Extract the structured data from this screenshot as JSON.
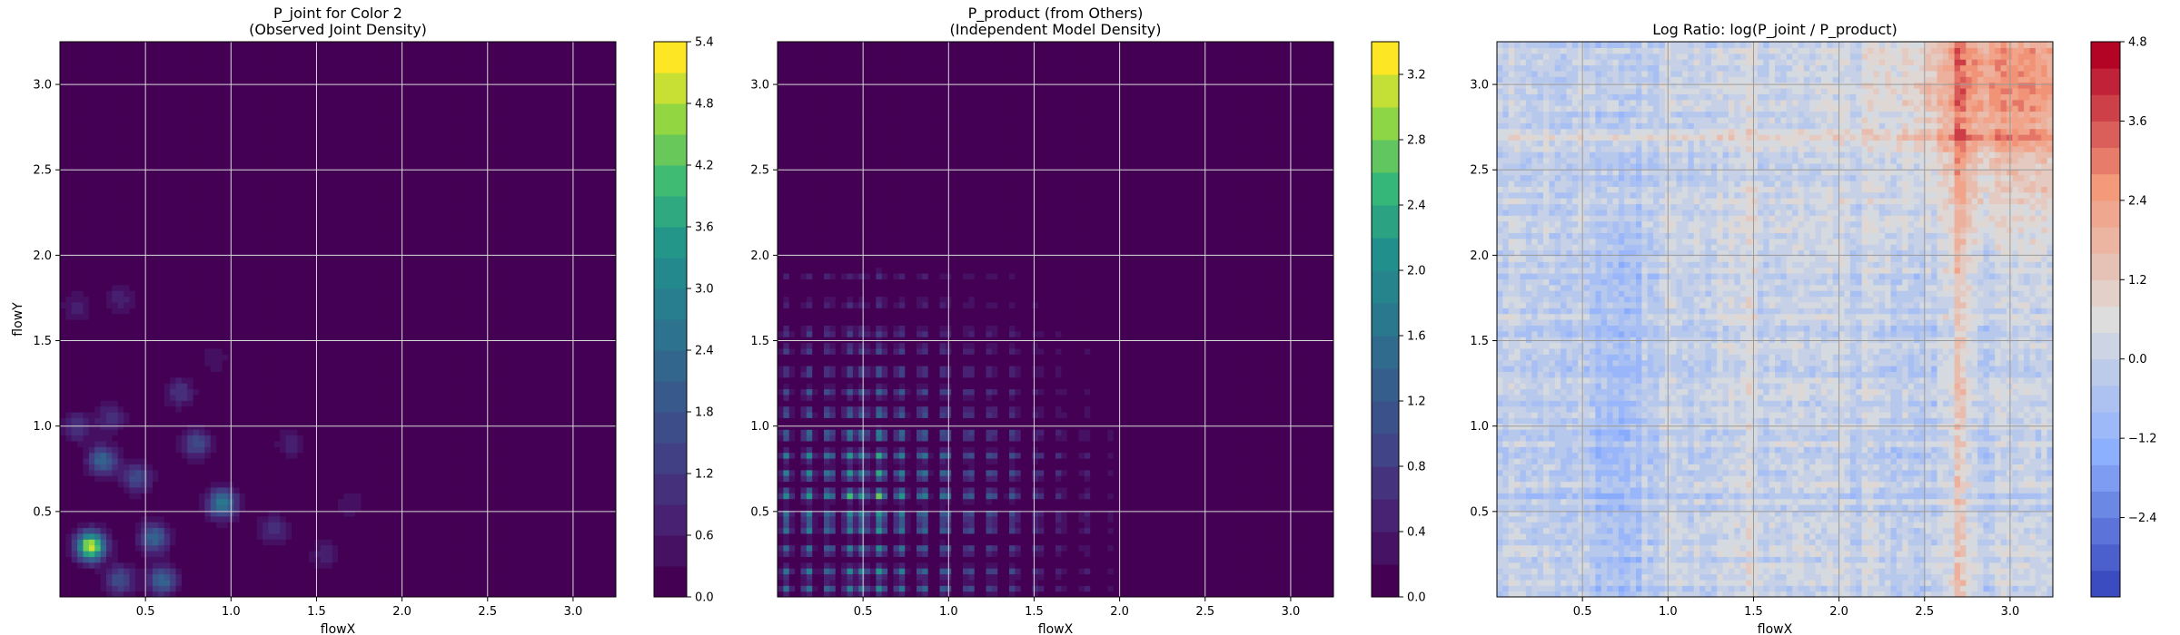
{
  "chart_data": [
    {
      "type": "heatmap",
      "title": "P_joint for Color 2\n(Observed Joint Density)",
      "xlabel": "flowX",
      "ylabel": "flowY",
      "xlim": [
        0.0,
        3.25
      ],
      "ylim": [
        0.0,
        3.25
      ],
      "x_ticks": [
        "0.5",
        "1.0",
        "1.5",
        "2.0",
        "2.5",
        "3.0"
      ],
      "y_ticks": [
        "0.5",
        "1.0",
        "1.5",
        "2.0",
        "2.5",
        "3.0"
      ],
      "grid": true,
      "colormap": "viridis",
      "colorbar": {
        "min": 0.0,
        "max": 5.4,
        "ticks": [
          "0.0",
          "0.6",
          "1.2",
          "1.8",
          "2.4",
          "3.0",
          "3.6",
          "4.2",
          "4.8",
          "5.4"
        ],
        "levels": 18
      },
      "density_peaks": [
        {
          "x": 0.18,
          "y": 0.3,
          "value": 5.4
        },
        {
          "x": 0.95,
          "y": 0.55,
          "value": 3.0
        },
        {
          "x": 0.25,
          "y": 0.8,
          "value": 2.4
        },
        {
          "x": 0.55,
          "y": 0.35,
          "value": 2.4
        },
        {
          "x": 0.6,
          "y": 0.1,
          "value": 2.4
        },
        {
          "x": 0.8,
          "y": 0.9,
          "value": 1.8
        },
        {
          "x": 0.45,
          "y": 0.7,
          "value": 1.8
        },
        {
          "x": 0.35,
          "y": 0.1,
          "value": 1.8
        },
        {
          "x": 1.25,
          "y": 0.4,
          "value": 1.2
        },
        {
          "x": 0.1,
          "y": 1.0,
          "value": 1.2
        },
        {
          "x": 0.3,
          "y": 1.05,
          "value": 1.2
        },
        {
          "x": 0.7,
          "y": 1.2,
          "value": 1.2
        },
        {
          "x": 0.1,
          "y": 1.7,
          "value": 0.8
        },
        {
          "x": 0.35,
          "y": 1.75,
          "value": 0.8
        },
        {
          "x": 1.35,
          "y": 0.9,
          "value": 0.8
        },
        {
          "x": 1.55,
          "y": 0.25,
          "value": 0.8
        },
        {
          "x": 0.9,
          "y": 1.4,
          "value": 0.6
        },
        {
          "x": 1.7,
          "y": 0.55,
          "value": 0.6
        }
      ]
    },
    {
      "type": "heatmap",
      "title": "P_product (from Others)\n(Independent Model Density)",
      "xlabel": "flowX",
      "ylabel": "",
      "xlim": [
        0.0,
        3.25
      ],
      "ylim": [
        0.0,
        3.25
      ],
      "x_ticks": [
        "0.5",
        "1.0",
        "1.5",
        "2.0",
        "2.5",
        "3.0"
      ],
      "y_ticks": [
        "0.5",
        "1.0",
        "1.5",
        "2.0",
        "2.5",
        "3.0"
      ],
      "grid": true,
      "colormap": "viridis",
      "colorbar": {
        "min": 0.0,
        "max": 3.4,
        "ticks": [
          "0.0",
          "0.4",
          "0.8",
          "1.2",
          "1.6",
          "2.0",
          "2.4",
          "2.8",
          "3.2"
        ],
        "levels": 17
      },
      "marginal_peaks_x": [
        {
          "x": 0.05,
          "w": 0.7
        },
        {
          "x": 0.18,
          "w": 0.8
        },
        {
          "x": 0.3,
          "w": 0.75
        },
        {
          "x": 0.42,
          "w": 0.85
        },
        {
          "x": 0.5,
          "w": 0.8
        },
        {
          "x": 0.6,
          "w": 1.0
        },
        {
          "x": 0.72,
          "w": 0.8
        },
        {
          "x": 0.85,
          "w": 0.75
        },
        {
          "x": 0.98,
          "w": 0.7
        },
        {
          "x": 1.12,
          "w": 0.55
        },
        {
          "x": 1.25,
          "w": 0.5
        },
        {
          "x": 1.38,
          "w": 0.45
        },
        {
          "x": 1.52,
          "w": 0.35
        },
        {
          "x": 1.65,
          "w": 0.25
        },
        {
          "x": 1.8,
          "w": 0.2
        },
        {
          "x": 1.95,
          "w": 0.12
        },
        {
          "x": 2.25,
          "w": 0.06
        }
      ],
      "marginal_peaks_y": [
        {
          "y": 0.05,
          "w": 0.7
        },
        {
          "y": 0.15,
          "w": 0.75
        },
        {
          "y": 0.28,
          "w": 0.7
        },
        {
          "y": 0.4,
          "w": 0.8
        },
        {
          "y": 0.48,
          "w": 0.85
        },
        {
          "y": 0.6,
          "w": 1.0
        },
        {
          "y": 0.72,
          "w": 0.85
        },
        {
          "y": 0.83,
          "w": 0.8
        },
        {
          "y": 0.95,
          "w": 0.75
        },
        {
          "y": 1.08,
          "w": 0.6
        },
        {
          "y": 1.2,
          "w": 0.5
        },
        {
          "y": 1.32,
          "w": 0.45
        },
        {
          "y": 1.45,
          "w": 0.4
        },
        {
          "y": 1.55,
          "w": 0.35
        },
        {
          "y": 1.72,
          "w": 0.25
        },
        {
          "y": 1.88,
          "w": 0.2
        },
        {
          "y": 2.28,
          "w": 0.06
        }
      ]
    },
    {
      "type": "heatmap",
      "title": "Log Ratio: log(P_joint / P_product)",
      "xlabel": "flowX",
      "ylabel": "",
      "xlim": [
        0.0,
        3.25
      ],
      "ylim": [
        0.0,
        3.25
      ],
      "x_ticks": [
        "0.5",
        "1.0",
        "1.5",
        "2.0",
        "2.5",
        "3.0"
      ],
      "y_ticks": [
        "0.5",
        "1.0",
        "1.5",
        "2.0",
        "2.5",
        "3.0"
      ],
      "grid": true,
      "colormap": "coolwarm",
      "colorbar": {
        "min": -3.6,
        "max": 4.8,
        "ticks": [
          "−2.4",
          "−1.2",
          "0.0",
          "1.2",
          "2.4",
          "3.6",
          "4.8"
        ],
        "tick_values": [
          -2.4,
          -1.2,
          0.0,
          1.2,
          2.4,
          3.6,
          4.8
        ],
        "levels": 21
      },
      "trend": "values rise toward the upper-right corner, strongest near flowX 2.7–3.2, flowY 2.6–3.2; blue bands near flowX 0.6–1.1 and flowY 0.6"
    }
  ]
}
